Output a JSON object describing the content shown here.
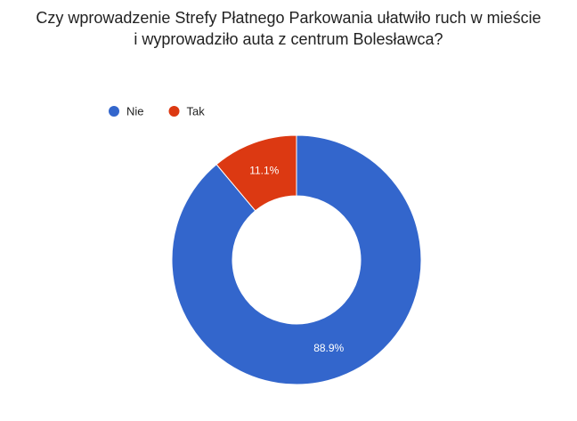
{
  "chart_data": {
    "type": "pie",
    "donut": true,
    "title": "Czy wprowadzenie Strefy Płatnego Parkowania ułatwiło ruch w mieście i wyprowadziło auta z centrum Bolesławca?",
    "categories": [
      "Nie",
      "Tak"
    ],
    "values": [
      88.9,
      11.1
    ],
    "value_labels": [
      "88.9%",
      "11.1%"
    ],
    "colors": [
      "#3366cc",
      "#dc3912"
    ],
    "legend": "top-left"
  }
}
